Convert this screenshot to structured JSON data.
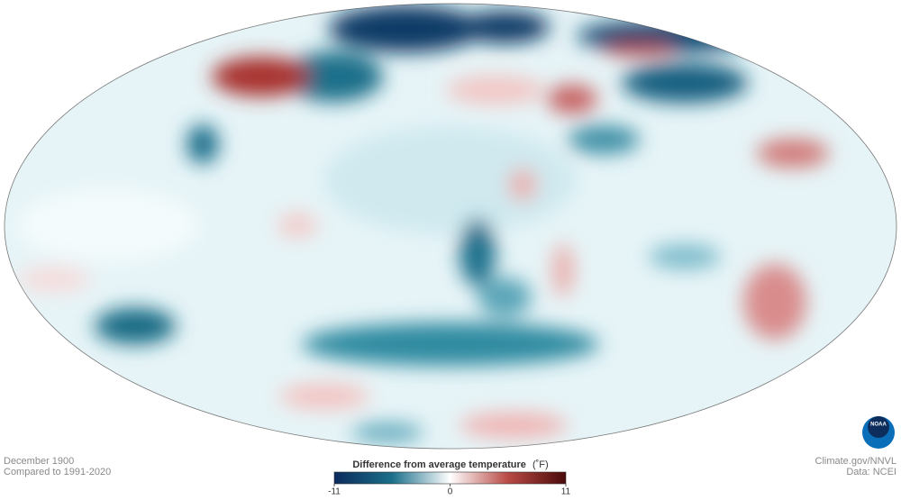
{
  "caption": {
    "date": "December 1900",
    "baseline": "Compared to 1991-2020"
  },
  "legend": {
    "title": "Difference from average temperature",
    "unit": "(˚F)",
    "min": -11,
    "max": 11,
    "ticks": [
      -11,
      0,
      11
    ],
    "colors": [
      "#0b2a5b",
      "#1a6f8a",
      "#ffffff",
      "#b84a45",
      "#4a0a0a"
    ]
  },
  "credits": {
    "source": "Climate.gov/NNVL",
    "data": "Data: NCEI"
  },
  "logo": {
    "text": "NOAA"
  }
}
